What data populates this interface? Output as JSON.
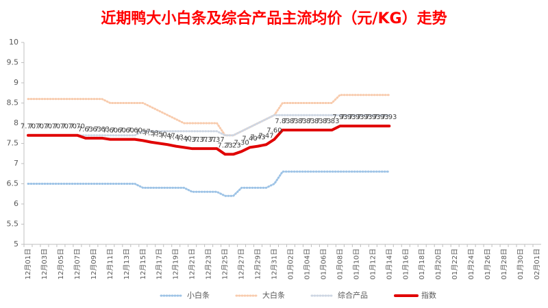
{
  "chart_data": {
    "type": "line",
    "title": "近期鸭大小白条及综合产品主流均价（元/KG）走势",
    "categories": [
      "12月01日",
      null,
      "12月03日",
      null,
      "12月05日",
      null,
      "12月07日",
      null,
      "12月09日",
      null,
      "12月11日",
      null,
      "12月13日",
      null,
      "12月15日",
      null,
      "12月17日",
      null,
      "12月19日",
      null,
      "12月21日",
      null,
      "12月23日",
      null,
      "12月25日",
      null,
      "12月27日",
      null,
      "12月29日",
      null,
      "12月31日",
      null,
      "01月02日",
      null,
      "01月04日",
      null,
      "01月06日",
      null,
      "01月08日",
      null,
      "01月10日",
      null,
      "01月12日",
      null,
      "01月14日",
      null,
      "01月16日",
      null,
      "01月18日",
      null,
      "01月20日",
      null,
      "01月22日",
      null,
      "01月24日",
      null,
      "01月26日",
      null,
      "01月28日",
      null,
      "01月30日",
      null,
      "02月01日"
    ],
    "series": [
      {
        "name": "小白条",
        "color": "#9dc3e6",
        "style": "dotted",
        "values": [
          6.5,
          6.5,
          6.5,
          6.5,
          6.5,
          6.5,
          6.5,
          6.5,
          6.5,
          6.5,
          6.5,
          6.5,
          6.5,
          6.5,
          6.4,
          6.4,
          6.4,
          6.4,
          6.4,
          6.4,
          6.3,
          6.3,
          6.3,
          6.3,
          6.2,
          6.2,
          6.4,
          6.4,
          6.4,
          6.4,
          6.5,
          6.8,
          6.8,
          6.8,
          6.8,
          6.8,
          6.8,
          6.8,
          6.8,
          6.8,
          6.8,
          6.8,
          6.8,
          6.8,
          6.8,
          null,
          null,
          null,
          null,
          null,
          null,
          null,
          null,
          null,
          null,
          null,
          null,
          null,
          null,
          null,
          null,
          null,
          null
        ]
      },
      {
        "name": "大白条",
        "color": "#f8cbad",
        "style": "dotted",
        "values": [
          8.6,
          8.6,
          8.6,
          8.6,
          8.6,
          8.6,
          8.6,
          8.6,
          8.6,
          8.6,
          8.5,
          8.5,
          8.5,
          8.5,
          8.5,
          8.4,
          8.3,
          8.2,
          8.1,
          8.0,
          8.0,
          8.0,
          8.0,
          8.0,
          7.7,
          7.7,
          7.8,
          7.9,
          8.0,
          8.1,
          8.2,
          8.5,
          8.5,
          8.5,
          8.5,
          8.5,
          8.5,
          8.5,
          8.7,
          8.7,
          8.7,
          8.7,
          8.7,
          8.7,
          8.7,
          null,
          null,
          null,
          null,
          null,
          null,
          null,
          null,
          null,
          null,
          null,
          null,
          null,
          null,
          null,
          null,
          null,
          null
        ]
      },
      {
        "name": "综合产品",
        "color": "#cdd6e3",
        "style": "dotted",
        "values": [
          7.7,
          7.7,
          7.7,
          7.7,
          7.7,
          7.7,
          7.7,
          7.7,
          7.7,
          7.7,
          7.7,
          7.7,
          7.7,
          7.7,
          7.8,
          7.8,
          7.8,
          7.8,
          7.8,
          7.8,
          7.8,
          7.8,
          7.8,
          7.8,
          7.7,
          7.7,
          7.8,
          7.9,
          8.0,
          8.1,
          8.2,
          8.2,
          8.2,
          8.2,
          8.2,
          8.2,
          8.2,
          8.2,
          8.2,
          8.2,
          8.2,
          8.2,
          8.2,
          8.2,
          8.2,
          null,
          null,
          null,
          null,
          null,
          null,
          null,
          null,
          null,
          null,
          null,
          null,
          null,
          null,
          null,
          null,
          null,
          null
        ]
      },
      {
        "name": "指数",
        "color": "#e00000",
        "style": "solid",
        "values": [
          7.7,
          7.7,
          7.7,
          7.7,
          7.7,
          7.7,
          7.7,
          7.63,
          7.63,
          7.63,
          7.6,
          7.6,
          7.6,
          7.6,
          7.57,
          7.53,
          7.5,
          7.47,
          7.43,
          7.4,
          7.37,
          7.37,
          7.37,
          7.37,
          7.23,
          7.23,
          7.3,
          7.4,
          7.43,
          7.47,
          7.6,
          7.83,
          7.83,
          7.83,
          7.83,
          7.83,
          7.83,
          7.83,
          7.93,
          7.93,
          7.93,
          7.93,
          7.93,
          7.93,
          7.93,
          null,
          null,
          null,
          null,
          null,
          null,
          null,
          null,
          null,
          null,
          null,
          null,
          null,
          null,
          null,
          null,
          null,
          null
        ],
        "value_labels": [
          "7.70",
          "7.70",
          "7.70",
          "7.70",
          "7.70",
          "7.70",
          "7.70",
          "7.63",
          "7.63",
          "7.63",
          "7.60",
          "7.60",
          "7.60",
          "7.60",
          "7.57",
          "7.53",
          "7.50",
          "7.47",
          "7.43",
          "7.40",
          "7.37",
          "7.37",
          "7.37",
          "7.37",
          "7.23",
          "7.23",
          "7.30",
          "7.40",
          "7.43",
          "7.47",
          "7.60",
          "7.83",
          "7.83",
          "7.83",
          "7.83",
          "7.83",
          "7.83",
          "7.83",
          "7.93",
          "7.93",
          "7.93",
          "7.93",
          "7.93",
          "7.93",
          "7.93",
          null,
          null,
          null,
          null,
          null,
          null,
          null,
          null,
          null,
          null,
          null,
          null,
          null,
          null,
          null,
          null,
          null,
          null
        ]
      }
    ],
    "ylim": [
      5,
      10
    ],
    "yticks": [
      5,
      5.5,
      6,
      6.5,
      7,
      7.5,
      8,
      8.5,
      9,
      9.5,
      10
    ],
    "grid": false
  }
}
